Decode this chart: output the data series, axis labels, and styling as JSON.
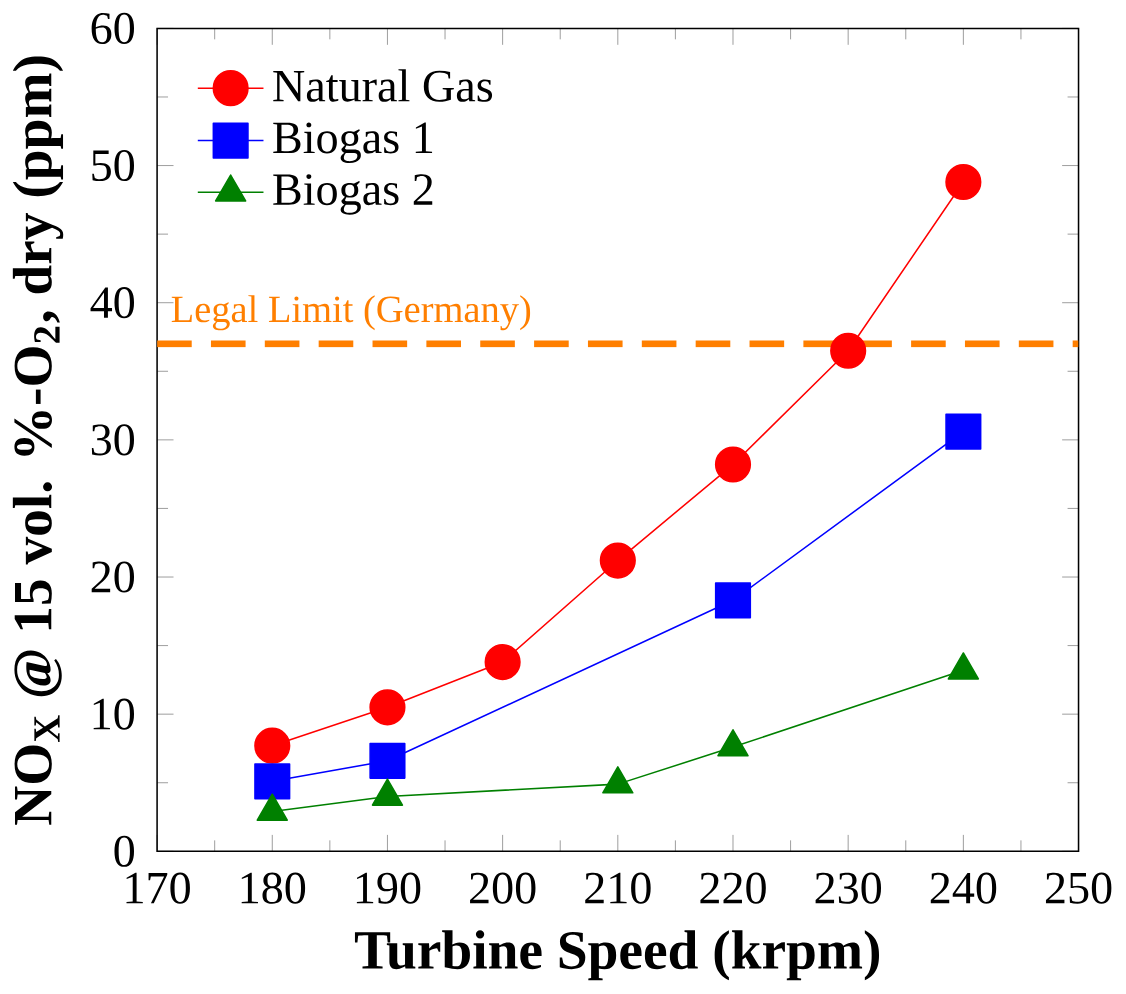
{
  "chart_data": {
    "type": "line",
    "xlabel": "Turbine Speed (krpm)",
    "ylabel": "NO$_{X}$ @ 15 vol. %-O$_{2}$, dry (ppm)",
    "xlim": [
      170,
      250
    ],
    "xticks": [
      170,
      180,
      190,
      200,
      210,
      220,
      230,
      240,
      250
    ],
    "ylim": [
      0,
      60
    ],
    "yticks": [
      0,
      10,
      20,
      30,
      40,
      50,
      60
    ],
    "legend": "top left",
    "grid": false,
    "line_style": "solid",
    "series": [
      {
        "name": "Natural Gas",
        "color": "#ff0000",
        "marker": "circle",
        "x": [
          180,
          190,
          200,
          210,
          220,
          230,
          240
        ],
        "values": [
          7.7,
          10.5,
          13.8,
          21.2,
          28.2,
          36.5,
          48.8
        ]
      },
      {
        "name": "Biogas 1",
        "color": "#0000ff",
        "marker": "square",
        "x": [
          180,
          190,
          220,
          240
        ],
        "values": [
          5.1,
          6.6,
          18.3,
          30.6
        ]
      },
      {
        "name": "Biogas 2",
        "color": "#008000",
        "marker": "triangle",
        "x": [
          180,
          190,
          210,
          220,
          240
        ],
        "values": [
          2.9,
          4.0,
          4.9,
          7.6,
          13.2
        ]
      }
    ],
    "ref_lines": [
      {
        "axis": "y",
        "value": 37,
        "label": "Legal Limit (Germany)",
        "color": "#ff7f00",
        "line_style": "dashed"
      }
    ]
  }
}
